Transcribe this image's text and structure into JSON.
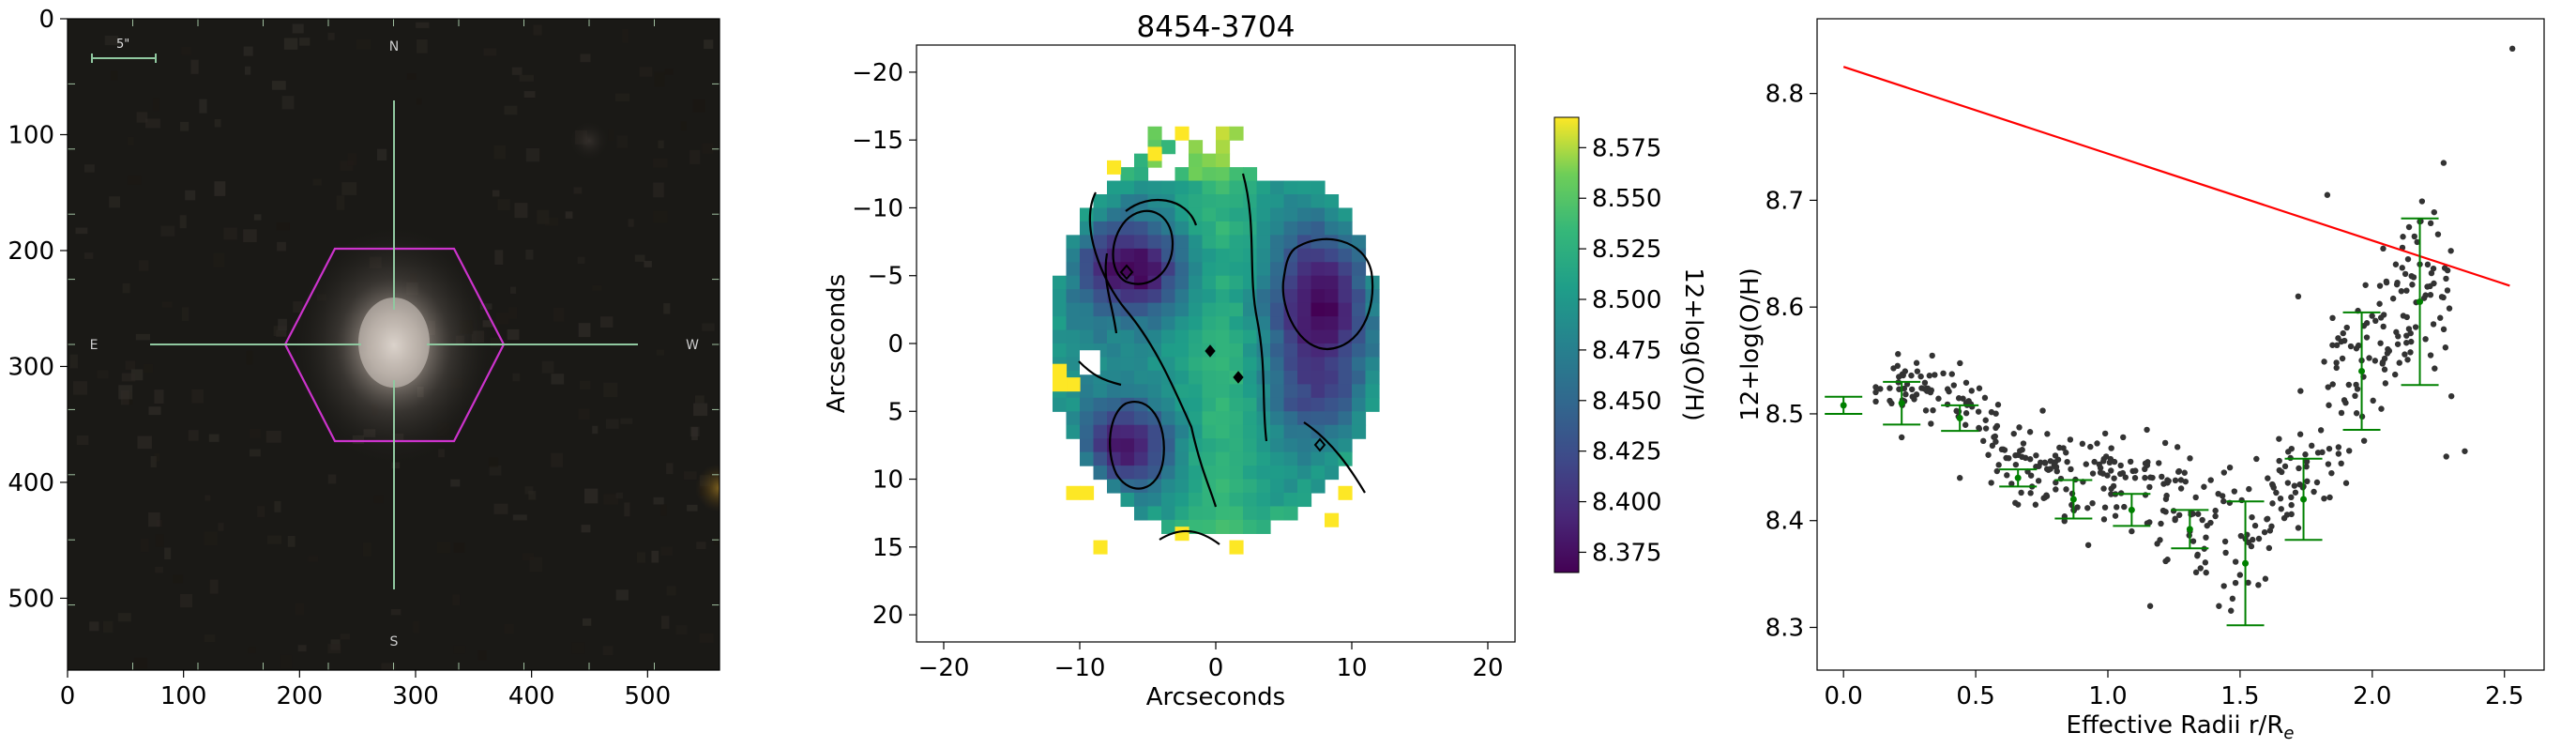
{
  "chart_data": [
    {
      "type": "image",
      "panel": "sky-image",
      "xlim": [
        0,
        562
      ],
      "ylim": [
        562,
        0
      ],
      "xticks": [
        0,
        100,
        200,
        300,
        400,
        500
      ],
      "yticks": [
        0,
        100,
        200,
        300,
        400,
        500
      ],
      "compass": {
        "north": "N",
        "south": "S",
        "east": "E",
        "west": "W"
      },
      "scale_bar_label": "5\"",
      "hexagon_color": "#cc33cc",
      "crosshair_color": "#90c8a0"
    },
    {
      "type": "heatmap",
      "panel": "metallicity-map",
      "title": "8454-3704",
      "xlabel": "Arcseconds",
      "ylabel": "Arcseconds",
      "xlim": [
        -22,
        22
      ],
      "ylim": [
        22,
        -22
      ],
      "xticks": [
        -20,
        -10,
        0,
        10,
        20
      ],
      "yticks": [
        -20,
        -15,
        -10,
        -5,
        0,
        5,
        10,
        15,
        20
      ],
      "colorbar": {
        "label": "12+log(O/H)",
        "min": 8.365,
        "max": 8.59,
        "ticks": [
          8.375,
          8.4,
          8.425,
          8.45,
          8.475,
          8.5,
          8.525,
          8.55,
          8.575
        ],
        "tick_labels": [
          "8.375",
          "8.400",
          "8.425",
          "8.450",
          "8.475",
          "8.500",
          "8.525",
          "8.550",
          "8.575"
        ],
        "colormap": "viridis"
      }
    },
    {
      "type": "scatter",
      "panel": "gradient",
      "xlabel": "Effective Radii r/R",
      "xlabel_sub": "e",
      "ylabel": "12+log(O/H)",
      "xlim": [
        -0.1,
        2.65
      ],
      "ylim": [
        8.26,
        8.87
      ],
      "xticks": [
        0.0,
        0.5,
        1.0,
        1.5,
        2.0,
        2.5
      ],
      "xtick_labels": [
        "0.0",
        "0.5",
        "1.0",
        "1.5",
        "2.0",
        "2.5"
      ],
      "yticks": [
        8.3,
        8.4,
        8.5,
        8.6,
        8.7,
        8.8
      ],
      "ytick_labels": [
        "8.3",
        "8.4",
        "8.5",
        "8.6",
        "8.7",
        "8.8"
      ],
      "fit_line": {
        "x": [
          0.0,
          2.52
        ],
        "y": [
          8.825,
          8.62
        ],
        "color": "#ff0000"
      },
      "binned_means": {
        "color": "#008000",
        "x": [
          0.0,
          0.22,
          0.44,
          0.66,
          0.87,
          1.09,
          1.31,
          1.52,
          1.74,
          1.96,
          2.18
        ],
        "y": [
          8.508,
          8.51,
          8.496,
          8.44,
          8.42,
          8.41,
          8.392,
          8.36,
          8.42,
          8.54,
          8.605
        ],
        "err": [
          0.008,
          0.02,
          0.012,
          0.008,
          0.018,
          0.015,
          0.018,
          0.058,
          0.038,
          0.055,
          0.078
        ]
      },
      "extra_points": [
        [
          0.0,
          8.508
        ],
        [
          0.22,
          8.478
        ],
        [
          0.44,
          8.44
        ],
        [
          0.66,
          8.415
        ],
        [
          0.87,
          8.41
        ],
        [
          1.09,
          8.39
        ],
        [
          1.31,
          8.39
        ],
        [
          1.52,
          8.383
        ],
        [
          1.74,
          8.432
        ],
        [
          1.96,
          8.55
        ],
        [
          2.18,
          8.64
        ],
        [
          2.53,
          8.842
        ],
        [
          2.27,
          8.735
        ],
        [
          1.83,
          8.705
        ],
        [
          2.18,
          8.68
        ],
        [
          1.72,
          8.61
        ],
        [
          2.28,
          8.46
        ],
        [
          2.35,
          8.465
        ],
        [
          1.16,
          8.32
        ],
        [
          1.42,
          8.32
        ]
      ],
      "scatter_color": "#333333"
    }
  ]
}
